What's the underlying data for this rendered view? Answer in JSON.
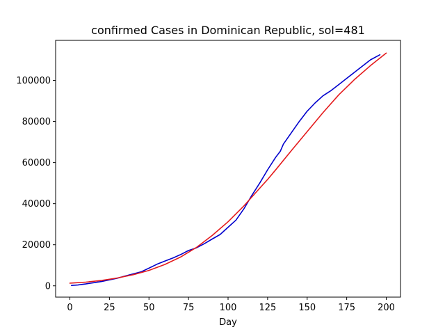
{
  "chart_data": {
    "type": "line",
    "title": "confirmed Cases in Dominican Republic, sol=481",
    "xlabel": "Day",
    "ylabel": "",
    "xlim": [
      -9,
      209
    ],
    "ylim": [
      -5500,
      119500
    ],
    "x_ticks": [
      0,
      25,
      50,
      75,
      100,
      125,
      150,
      175,
      200
    ],
    "y_ticks": [
      0,
      20000,
      40000,
      60000,
      80000,
      100000
    ],
    "x_tick_labels": [
      "0",
      "25",
      "50",
      "75",
      "100",
      "125",
      "150",
      "175",
      "200"
    ],
    "y_tick_labels": [
      "0",
      "20000",
      "40000",
      "60000",
      "80000",
      "100000"
    ],
    "grid": false,
    "legend": "none",
    "series": [
      {
        "color": "#0000cd",
        "x": [
          1,
          5,
          10,
          15,
          20,
          25,
          30,
          35,
          40,
          45,
          50,
          55,
          60,
          65,
          70,
          75,
          80,
          85,
          90,
          95,
          100,
          105,
          110,
          115,
          120,
          125,
          130,
          133,
          135,
          140,
          145,
          150,
          155,
          160,
          165,
          170,
          175,
          180,
          185,
          190,
          196
        ],
        "y": [
          200,
          400,
          900,
          1500,
          2100,
          2900,
          3700,
          4800,
          5800,
          6800,
          8600,
          10500,
          12000,
          13500,
          15200,
          17200,
          18500,
          20500,
          22800,
          25000,
          28500,
          32000,
          37500,
          44000,
          50000,
          56500,
          62500,
          65500,
          69000,
          74500,
          80000,
          85000,
          89000,
          92500,
          95000,
          98000,
          101000,
          104000,
          107000,
          110000,
          112500
        ]
      },
      {
        "color": "#e41a1c",
        "x": [
          0,
          10,
          20,
          30,
          40,
          50,
          60,
          70,
          80,
          90,
          100,
          110,
          120,
          125,
          130,
          140,
          150,
          160,
          170,
          180,
          190,
          200
        ],
        "y": [
          1300,
          1800,
          2600,
          3800,
          5400,
          7500,
          10400,
          14000,
          18700,
          24500,
          31200,
          38900,
          47500,
          51800,
          56400,
          65800,
          75100,
          84300,
          93000,
          100500,
          107200,
          113300
        ]
      }
    ]
  }
}
